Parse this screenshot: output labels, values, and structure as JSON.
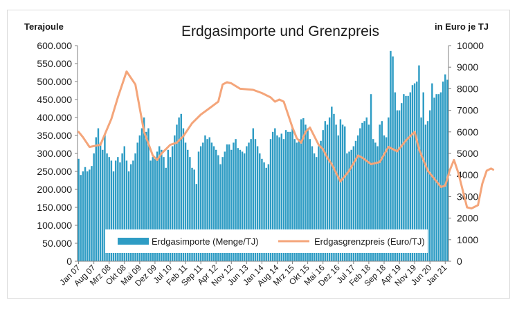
{
  "chart_data": {
    "type": "bar",
    "title": "Erdgasimporte und Grenzpreis",
    "ylabel_left": "Terajoule",
    "ylabel_right": "in Euro je TJ",
    "ylim_left": [
      0,
      600000
    ],
    "ylim_right": [
      0,
      10000
    ],
    "yticks_left": [
      "0",
      "50.000",
      "100.000",
      "150.000",
      "200.000",
      "250.000",
      "300.000",
      "350.000",
      "400.000",
      "450.000",
      "500.000",
      "550.000",
      "600.000"
    ],
    "yticks_right": [
      "0",
      "1000",
      "2000",
      "3000",
      "4000",
      "5000",
      "6000",
      "7000",
      "8000",
      "9000",
      "10000"
    ],
    "xticks": [
      "Jan 07",
      "Aug 07",
      "Mrz 08",
      "Okt 08",
      "Mai 09",
      "Dez 09",
      "Jul 10",
      "Feb 11",
      "Sep 11",
      "Apr 12",
      "Nov 12",
      "Jun 13",
      "Jan 14",
      "Aug 14",
      "Mrz 15",
      "Okt 15",
      "Mai 16",
      "Dez 16",
      "Jul 17",
      "Feb 18",
      "Sep 18",
      "Apr 19",
      "Nov 19",
      "Jun 20",
      "Jan 21"
    ],
    "grid": false,
    "legend_position": "bottom-center",
    "series": [
      {
        "name": "Erdgasimporte (Menge/TJ)",
        "type": "bar",
        "axis": "left",
        "color": "#2e9cc4",
        "values": [
          285000,
          240000,
          250000,
          262000,
          250000,
          255000,
          265000,
          300000,
          345000,
          370000,
          330000,
          310000,
          355000,
          300000,
          290000,
          280000,
          250000,
          280000,
          290000,
          275000,
          300000,
          320000,
          280000,
          250000,
          270000,
          280000,
          300000,
          330000,
          350000,
          370000,
          400000,
          360000,
          370000,
          280000,
          290000,
          285000,
          305000,
          320000,
          310000,
          290000,
          260000,
          310000,
          290000,
          320000,
          350000,
          380000,
          400000,
          410000,
          370000,
          330000,
          310000,
          290000,
          260000,
          255000,
          215000,
          305000,
          320000,
          330000,
          350000,
          340000,
          345000,
          330000,
          320000,
          310000,
          295000,
          270000,
          290000,
          305000,
          325000,
          325000,
          310000,
          330000,
          340000,
          315000,
          310000,
          305000,
          300000,
          320000,
          330000,
          340000,
          370000,
          340000,
          320000,
          300000,
          285000,
          275000,
          260000,
          270000,
          340000,
          360000,
          370000,
          350000,
          345000,
          355000,
          340000,
          365000,
          360000,
          360000,
          370000,
          340000,
          330000,
          340000,
          395000,
          398000,
          380000,
          370000,
          340000,
          320000,
          300000,
          290000,
          320000,
          335000,
          365000,
          390000,
          380000,
          400000,
          430000,
          410000,
          380000,
          350000,
          395000,
          380000,
          375000,
          300000,
          305000,
          310000,
          320000,
          335000,
          350000,
          370000,
          385000,
          390000,
          400000,
          380000,
          465000,
          340000,
          330000,
          320000,
          380000,
          390000,
          350000,
          345000,
          400000,
          585000,
          570000,
          470000,
          420000,
          420000,
          440000,
          465000,
          460000,
          460000,
          470000,
          490000,
          495000,
          500000,
          545000,
          400000,
          470000,
          380000,
          390000,
          420000,
          495000,
          455000,
          465000,
          465000,
          470000,
          500000,
          520000,
          505000
        ]
      },
      {
        "name": "Erdgasgrenzpreis (Euro/TJ)",
        "type": "line",
        "axis": "right",
        "color": "#f4a57a",
        "x": [
          0,
          2,
          5,
          10,
          15,
          18,
          22,
          26,
          30,
          34,
          36,
          38,
          40,
          42,
          45,
          48,
          52,
          56,
          60,
          64,
          66,
          68,
          70,
          74,
          80,
          84,
          88,
          90,
          92,
          94,
          96,
          98,
          100,
          102,
          104,
          106,
          108,
          110,
          112,
          114,
          116,
          118,
          120,
          124,
          128,
          130,
          134,
          138,
          142,
          146,
          150,
          152,
          154,
          156,
          160,
          164,
          166,
          168,
          170,
          172,
          174,
          176,
          178,
          180,
          183,
          185,
          187,
          189,
          190
        ],
        "values": [
          6000,
          5750,
          5300,
          5400,
          6600,
          7600,
          8800,
          8200,
          6000,
          4900,
          4700,
          5000,
          5200,
          5400,
          5500,
          5800,
          6400,
          6800,
          7100,
          7400,
          8200,
          8300,
          8250,
          8000,
          7950,
          7800,
          7600,
          7400,
          7500,
          7400,
          6800,
          6200,
          5700,
          5500,
          6000,
          6200,
          5800,
          5400,
          5200,
          4800,
          4500,
          4100,
          3700,
          4200,
          4900,
          4800,
          4500,
          4600,
          5300,
          5100,
          5600,
          5800,
          6000,
          5200,
          4200,
          3700,
          3450,
          3500,
          4200,
          4700,
          4100,
          3300,
          2500,
          2450,
          2600,
          3600,
          4200,
          4300,
          4250
        ]
      }
    ]
  }
}
